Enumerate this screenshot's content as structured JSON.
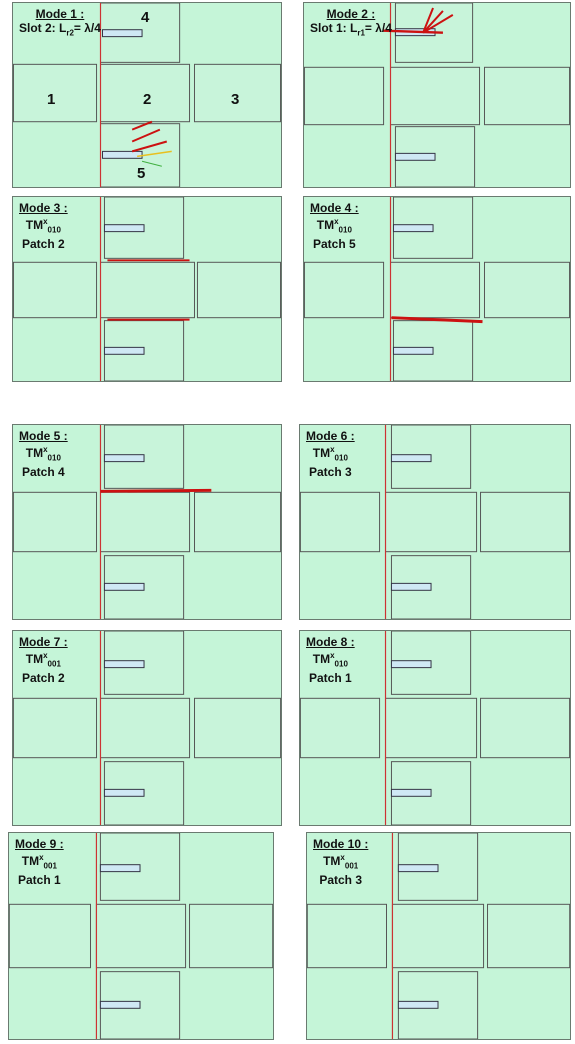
{
  "panels": [
    {
      "title": "Mode 1",
      "line2": "Slot 2: L",
      "line2_sub": "r2",
      "line2_tail": "= λ/4",
      "line3": ""
    },
    {
      "title": "Mode 2",
      "line2": "Slot 1: L",
      "line2_sub": "r1",
      "line2_tail": "= λ/4",
      "line3": ""
    },
    {
      "title": "Mode 3",
      "tm": "TM",
      "sup": "x",
      "sub": "010",
      "line3": "Patch 2"
    },
    {
      "title": "Mode 4",
      "tm": "TM",
      "sup": "x",
      "sub": "010",
      "line3": "Patch 5"
    },
    {
      "title": "Mode 5",
      "tm": "TM",
      "sup": "x",
      "sub": "010",
      "line3": "Patch 4"
    },
    {
      "title": "Mode 6",
      "tm": "TM",
      "sup": "x",
      "sub": "010",
      "line3": "Patch 3"
    },
    {
      "title": "Mode 7",
      "tm": "TM",
      "sup": "x",
      "sub": "001",
      "line3": "Patch 2"
    },
    {
      "title": "Mode 8",
      "tm": "TM",
      "sup": "x",
      "sub": "010",
      "line3": "Patch 1"
    },
    {
      "title": "Mode 9",
      "tm": "TM",
      "sup": "x",
      "sub": "001",
      "line3": "Patch 1"
    },
    {
      "title": "Mode 10",
      "tm": "TM",
      "sup": "x",
      "sub": "001",
      "line3": "Patch 3"
    }
  ],
  "patch_numbers": {
    "p1": "1",
    "p2": "2",
    "p3": "3",
    "p4": "4",
    "p5": "5"
  },
  "colors": {
    "background": "#c5f5d8",
    "arrow_strong": "#cc1111",
    "arrow_mid": "#e8c020",
    "arrow_weak": "#40b040",
    "axis": "#cc3333"
  }
}
